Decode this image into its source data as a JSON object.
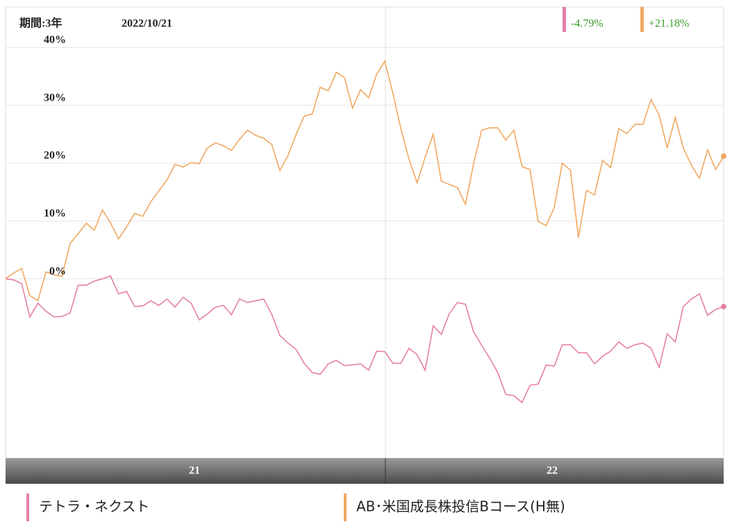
{
  "chart_data": {
    "type": "line",
    "period": "期間:3年",
    "date": "2022/10/21",
    "period_labels": [
      "21",
      "22"
    ],
    "ylim": [
      -31,
      47
    ],
    "yticks": [
      {
        "value": 0,
        "label": "0%"
      },
      {
        "value": 10,
        "label": "10%"
      },
      {
        "value": 20,
        "label": "20%"
      },
      {
        "value": 30,
        "label": "30%"
      },
      {
        "value": 40,
        "label": "40%"
      }
    ],
    "grid": true,
    "series": [
      {
        "name": "テトラ・ネクスト",
        "color": "#e57fa8",
        "change": -4.79,
        "change_label": "-4.79%",
        "values": [
          0,
          -0.2,
          -0.8,
          -6.6,
          -4.2,
          -5.6,
          -6.6,
          -6.5,
          -5.9,
          -1.1,
          -1.1,
          -0.4,
          0,
          0.5,
          -2.6,
          -2.2,
          -4.8,
          -4.7,
          -3.8,
          -4.6,
          -3.5,
          -4.9,
          -3.2,
          -4.2,
          -7.1,
          -6.1,
          -4.9,
          -4.6,
          -6.2,
          -3.5,
          -4.1,
          -3.8,
          -3.5,
          -6.2,
          -9.8,
          -11.1,
          -12.2,
          -14.6,
          -16.2,
          -16.5,
          -14.7,
          -14.1,
          -15.0,
          -14.9,
          -14.7,
          -15.8,
          -12.5,
          -12.6,
          -14.6,
          -14.6,
          -12.0,
          -13.1,
          -15.8,
          -8.1,
          -9.6,
          -6.0,
          -4.1,
          -4.4,
          -9.1,
          -11.5,
          -13.7,
          -16.2,
          -20.0,
          -20.2,
          -21.4,
          -18.4,
          -18.2,
          -14.9,
          -15.1,
          -11.4,
          -11.4,
          -12.8,
          -12.8,
          -14.7,
          -13.4,
          -12.5,
          -10.9,
          -12.0,
          -11.4,
          -11.1,
          -12.0,
          -15.3,
          -9.5,
          -10.9,
          -4.8,
          -3.5,
          -2.6,
          -6.3,
          -5.3,
          -4.8
        ]
      },
      {
        "name": "AB･米国成長株投信Bコース(H無)",
        "color": "#f0a860",
        "change": 21.18,
        "change_label": "+21.18%",
        "values": [
          0,
          1,
          1.8,
          -2.9,
          -3.8,
          1.2,
          0.7,
          0.4,
          6.1,
          7.8,
          9.6,
          8.4,
          11.9,
          9.7,
          6.9,
          9.0,
          11.3,
          10.8,
          13.3,
          15.2,
          17.1,
          19.8,
          19.3,
          20.1,
          19.9,
          22.6,
          23.5,
          23.0,
          22.2,
          24.1,
          25.7,
          24.8,
          24.3,
          23.2,
          18.7,
          21.3,
          24.9,
          28.1,
          28.5,
          33.1,
          32.5,
          35.7,
          34.8,
          29.5,
          32.7,
          31.3,
          35.4,
          37.6,
          32.1,
          25.9,
          20.7,
          16.6,
          21.0,
          25.0,
          16.9,
          16.3,
          15.8,
          12.9,
          19.8,
          25.7,
          26.1,
          26.1,
          24.0,
          25.7,
          19.4,
          18.9,
          9.9,
          9.2,
          12.3,
          20.0,
          18.8,
          7.1,
          15.3,
          14.5,
          20.5,
          19.2,
          26.0,
          25.1,
          26.7,
          26.7,
          31.0,
          28.3,
          22.6,
          27.9,
          22.6,
          19.6,
          17.4,
          22.3,
          18.9,
          21.2
        ]
      }
    ]
  }
}
